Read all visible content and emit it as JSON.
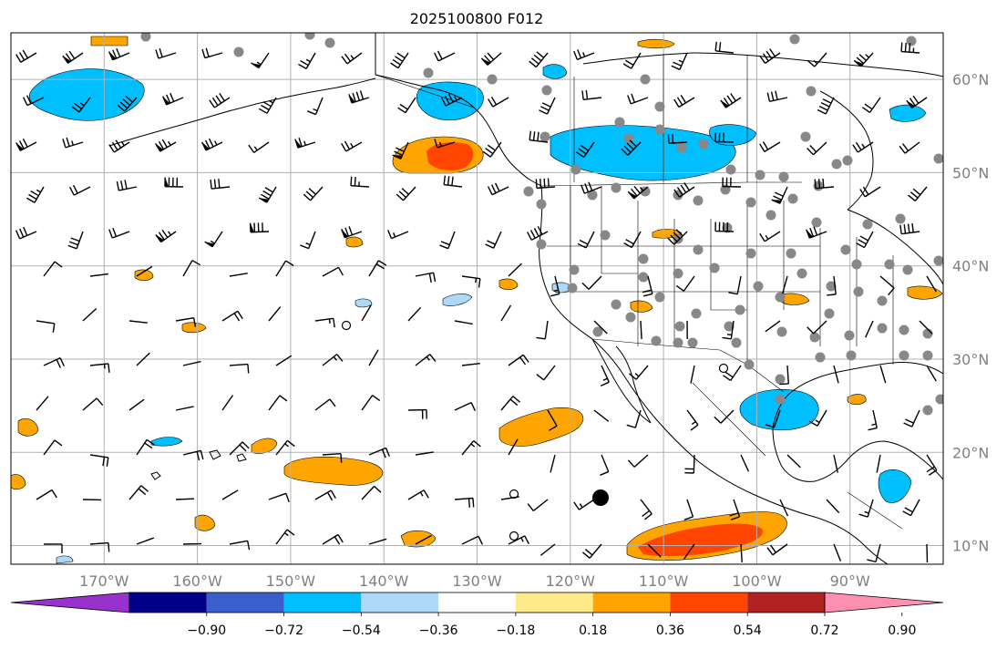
{
  "title": "2025100800 F012",
  "map": {
    "lat_range": [
      8,
      65
    ],
    "lon_range": [
      -180,
      -80
    ],
    "latitude_labels": [
      "10°N",
      "20°N",
      "30°N",
      "40°N",
      "50°N",
      "60°N"
    ],
    "latitude_values": [
      10,
      20,
      30,
      40,
      50,
      60
    ],
    "longitude_labels": [
      "170°W",
      "160°W",
      "150°W",
      "140°W",
      "130°W",
      "120°W",
      "110°W",
      "100°W",
      "90°W"
    ],
    "longitude_values": [
      -170,
      -160,
      -150,
      -140,
      -130,
      -120,
      -110,
      -100,
      -90
    ],
    "label_color": "#808080",
    "grid_color": "#b0b0b0"
  },
  "colorbar": {
    "ticks": [
      "−0.90",
      "−0.72",
      "−0.54",
      "−0.36",
      "−0.18",
      "0.18",
      "0.36",
      "0.54",
      "0.72",
      "0.90"
    ],
    "colors": [
      "#9932cc",
      "#00008b",
      "#3a5fcd",
      "#00bfff",
      "#add8f7",
      "#ffffff",
      "#ffea8a",
      "#ffa500",
      "#ff4500",
      "#b22222",
      "#ff8fb1"
    ]
  },
  "field_colors": {
    "neg_strong": "#00bfff",
    "neg_weak": "#add8f7",
    "pos_weak": "#ffea8a",
    "pos_mid": "#ffa500",
    "pos_strong": "#ff4500"
  },
  "station_color": "#888888"
}
